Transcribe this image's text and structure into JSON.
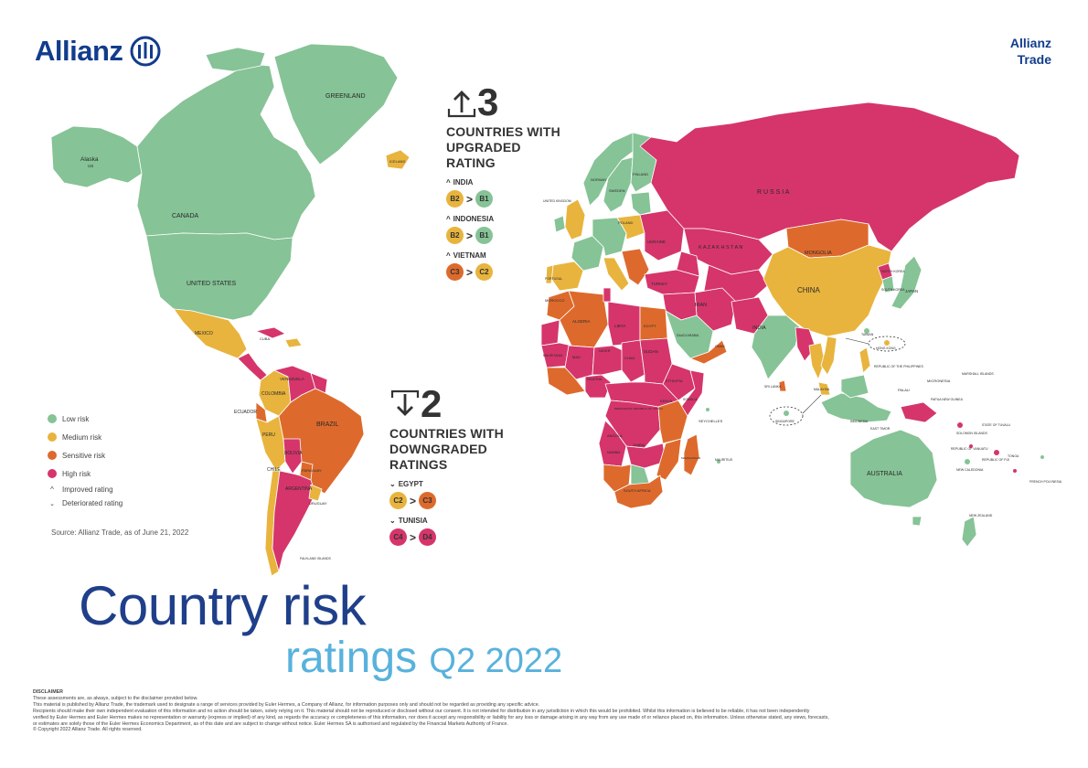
{
  "brand": {
    "logo_text": "Allianz",
    "right_line1": "Allianz",
    "right_line2": "Trade"
  },
  "colors": {
    "low": "#86c396",
    "medium": "#e8b43d",
    "sensitive": "#dd6a2c",
    "high": "#d5356b",
    "ocean": "#ffffff",
    "brand_blue": "#123c8c",
    "title_light": "#58b2dc"
  },
  "upgraded": {
    "count": "3",
    "headline": [
      "COUNTRIES WITH",
      "UPGRADED",
      "RATING"
    ],
    "items": [
      {
        "country": "INDIA",
        "from": "B2",
        "to": "B1",
        "from_color": "medium",
        "to_color": "low"
      },
      {
        "country": "INDONESIA",
        "from": "B2",
        "to": "B1",
        "from_color": "medium",
        "to_color": "low"
      },
      {
        "country": "VIETNAM",
        "from": "C3",
        "to": "C2",
        "from_color": "sensitive",
        "to_color": "medium"
      }
    ]
  },
  "downgraded": {
    "count": "2",
    "headline": [
      "COUNTRIES WITH",
      "DOWNGRADED",
      "RATINGS"
    ],
    "items": [
      {
        "country": "EGYPT",
        "from": "C2",
        "to": "C3",
        "from_color": "medium",
        "to_color": "sensitive"
      },
      {
        "country": "TUNISIA",
        "from": "C4",
        "to": "D4",
        "from_color": "high",
        "to_color": "high"
      }
    ]
  },
  "legend": {
    "items": [
      {
        "label": "Low risk",
        "color": "low"
      },
      {
        "label": "Medium risk",
        "color": "medium"
      },
      {
        "label": "Sensitive risk",
        "color": "sensitive"
      },
      {
        "label": "High risk",
        "color": "high"
      }
    ],
    "improved": "Improved rating",
    "deteriorated": "Deteriorated rating"
  },
  "source": "Source: Allianz Trade, as of June 21, 2022",
  "title": {
    "line1": "Country risk",
    "line2a": "ratings ",
    "line2b": "Q2 2022"
  },
  "disclaimer": {
    "title": "DISCLAIMER",
    "lines": [
      "These assessments are, as always, subject to the disclaimer provided below.",
      "This material is published by Allianz Trade, the trademark used to designate a range of services provided by Euler Hermes, a Company of Allianz, for information purposes only and should not be regarded as providing any specific advice.",
      "Recipients should make their own independent evaluation of this information and no action should be taken, solely relying on it. This material should not be reproduced or disclosed without our consent. It is not intended for distribution in any jurisdiction in which this would be prohibited. Whilst this information is believed to be reliable, it has not been independently",
      "verified by Euler Hermes and Euler Hermes makes no representation or warranty (express or implied) of any kind, as regards the accuracy or completeness of this information, nor does it accept any responsibility or liability for any loss or damage arising in any way from any use made of or reliance placed on, this information. Unless otherwise stated, any views, forecasts,",
      "or estimates are solely those of the Euler Hermes Economics Department, as of this date and are subject to change without notice. Euler Hermes SA is authorised and regulated by the Financial Markets Authority of France.",
      "© Copyright 2022 Allianz Trade. All rights reserved."
    ]
  },
  "map": {
    "regions": [
      {
        "name": "Alaska US",
        "risk": "low"
      },
      {
        "name": "CANADA",
        "risk": "low"
      },
      {
        "name": "UNITED STATES",
        "risk": "low"
      },
      {
        "name": "GREENLAND",
        "risk": "low"
      },
      {
        "name": "ICELAND",
        "risk": "medium"
      },
      {
        "name": "MEXICO",
        "risk": "medium"
      },
      {
        "name": "COLOMBIA",
        "risk": "medium"
      },
      {
        "name": "VENEZUELA",
        "risk": "high"
      },
      {
        "name": "ECUADOR",
        "risk": "sensitive"
      },
      {
        "name": "PERU",
        "risk": "medium"
      },
      {
        "name": "BRAZIL",
        "risk": "sensitive"
      },
      {
        "name": "BOLIVIA",
        "risk": "high"
      },
      {
        "name": "CHILE",
        "risk": "medium"
      },
      {
        "name": "ARGENTINA",
        "risk": "high"
      },
      {
        "name": "URUGUAY",
        "risk": "medium"
      },
      {
        "name": "RUSSIA",
        "risk": "high"
      },
      {
        "name": "KAZAKHSTAN",
        "risk": "high"
      },
      {
        "name": "MONGOLIA",
        "risk": "sensitive"
      },
      {
        "name": "CHINA",
        "risk": "medium"
      },
      {
        "name": "INDIA",
        "risk": "low"
      },
      {
        "name": "IRAN",
        "risk": "high"
      },
      {
        "name": "TURKEY",
        "risk": "high"
      },
      {
        "name": "UKRAINE",
        "risk": "high"
      },
      {
        "name": "POLAND",
        "risk": "medium"
      },
      {
        "name": "FINLAND",
        "risk": "low"
      },
      {
        "name": "SWEDEN",
        "risk": "low"
      },
      {
        "name": "NORWAY",
        "risk": "low"
      },
      {
        "name": "UNITED KINGDOM",
        "risk": "medium"
      },
      {
        "name": "FRANCE",
        "risk": "low"
      },
      {
        "name": "SPAIN",
        "risk": "medium"
      },
      {
        "name": "PORTUGAL",
        "risk": "medium"
      },
      {
        "name": "MOROCCO",
        "risk": "sensitive"
      },
      {
        "name": "ALGERIA",
        "risk": "sensitive"
      },
      {
        "name": "LIBYA",
        "risk": "high"
      },
      {
        "name": "EGYPT",
        "risk": "sensitive"
      },
      {
        "name": "SAUDI ARABIA",
        "risk": "low"
      },
      {
        "name": "MAURITANIA",
        "risk": "high"
      },
      {
        "name": "MALI",
        "risk": "high"
      },
      {
        "name": "NIGER",
        "risk": "high"
      },
      {
        "name": "CHAD",
        "risk": "high"
      },
      {
        "name": "SUDAN",
        "risk": "high"
      },
      {
        "name": "ETHIOPIA",
        "risk": "high"
      },
      {
        "name": "NIGERIA",
        "risk": "high"
      },
      {
        "name": "KENYA",
        "risk": "sensitive"
      },
      {
        "name": "DEMOCRATIC REPUBLIC OF CONGO",
        "risk": "high"
      },
      {
        "name": "ANGOLA",
        "risk": "high"
      },
      {
        "name": "NAMIBIA",
        "risk": "sensitive"
      },
      {
        "name": "ZAMBIA",
        "risk": "high"
      },
      {
        "name": "SOUTH AFRICA",
        "risk": "sensitive"
      },
      {
        "name": "MADAGASCAR",
        "risk": "sensitive"
      },
      {
        "name": "JAPAN",
        "risk": "low"
      },
      {
        "name": "SOUTH KOREA",
        "risk": "low"
      },
      {
        "name": "NORTH KOREA",
        "risk": "high"
      },
      {
        "name": "VIETNAM",
        "risk": "medium"
      },
      {
        "name": "INDONESIA",
        "risk": "low"
      },
      {
        "name": "PAPUA NEW GUINEA",
        "risk": "high"
      },
      {
        "name": "AUSTRALIA",
        "risk": "low"
      },
      {
        "name": "NEW ZEALAND",
        "risk": "low"
      }
    ],
    "labels": {
      "alaska": "Alaska",
      "alaska_us": "US",
      "canada": "CANADA",
      "usa": "UNITED STATES",
      "greenland": "GREENLAND",
      "iceland": "ICELAND",
      "mexico": "MEXICO",
      "cuba": "CUBA",
      "venezuela": "VENEZUELA",
      "colombia": "COLOMBIA",
      "ecuador": "ECUADOR",
      "peru": "PERU",
      "brazil": "BRAZIL",
      "bolivia": "BOLIVIA",
      "chile": "CHILE",
      "argentina": "ARGENTINA",
      "uruguay": "URUGUAY",
      "paraguay": "PARAGUAY",
      "falkland": "FALKLAND ISLANDS",
      "russia": "R U S S I A",
      "kazakhstan": "K A Z A K H S T A N",
      "mongolia": "MONGOLIA",
      "china": "CHINA",
      "india": "INDIA",
      "iran": "IRAN",
      "turkey": "TURKEY",
      "ukraine": "UKRAINE",
      "poland": "POLAND",
      "finland": "FINLAND",
      "sweden": "SWEDEN",
      "norway": "NORWAY",
      "uk": "UNITED KINGDOM",
      "portugal": "PORTUGAL",
      "morocco": "MOROCCO",
      "algeria": "ALGERIA",
      "libya": "LIBYA",
      "egypt": "EGYPT",
      "saudi": "SAUDI ARABIA",
      "oman": "OMAN",
      "mauritania": "MAURITANIA",
      "mali": "MALI",
      "niger": "NIGER",
      "chad": "CHAD",
      "sudan": "SUDAN",
      "ethiopia": "ETHIOPIA",
      "nigeria": "NIGERIA",
      "kenya": "KENYA",
      "somalia": "SOMALIA",
      "drc": "DEMOCRATIC REPUBLIC OF CONGO",
      "angola": "ANGOLA",
      "namibia": "NAMIBIA",
      "zambia": "ZAMBIA",
      "south_africa": "SOUTH AFRICA",
      "madagascar": "MADAGASCAR",
      "seychelles": "SEYCHELLES",
      "mauritius": "MAURITIUS",
      "japan": "JAPAN",
      "north_korea": "NORTH KOREA",
      "south_korea": "SOUTH KOREA",
      "taiwan": "TAIWAN",
      "hong_kong": "HONG KONG",
      "philippines": "REPUBLIC OF THE PHILIPPINES",
      "singapore": "SINGAPORE",
      "indonesia": "INDONESIA",
      "malaysia": "MALAYSIA",
      "sri_lanka": "SRI LANKA",
      "png": "PAPUA NEW GUINEA",
      "palau": "PALAU",
      "micronesia": "MICRONESIA",
      "marshall": "MARSHALL ISLANDS",
      "solomon": "SOLOMON ISLANDS",
      "vanuatu": "REPUBLIC OF VANUATU",
      "new_caledonia": "NEW CALEDONIA",
      "fiji": "REPUBLIC OF FIJI",
      "tuvalu": "STATE OF TUVALU",
      "tonga": "TONGA",
      "australia": "AUSTRALIA",
      "new_zealand": "NEW ZEALAND",
      "east_timor": "EAST TIMOR",
      "french_polynesia": "FRENCH POLYNESIA"
    }
  }
}
